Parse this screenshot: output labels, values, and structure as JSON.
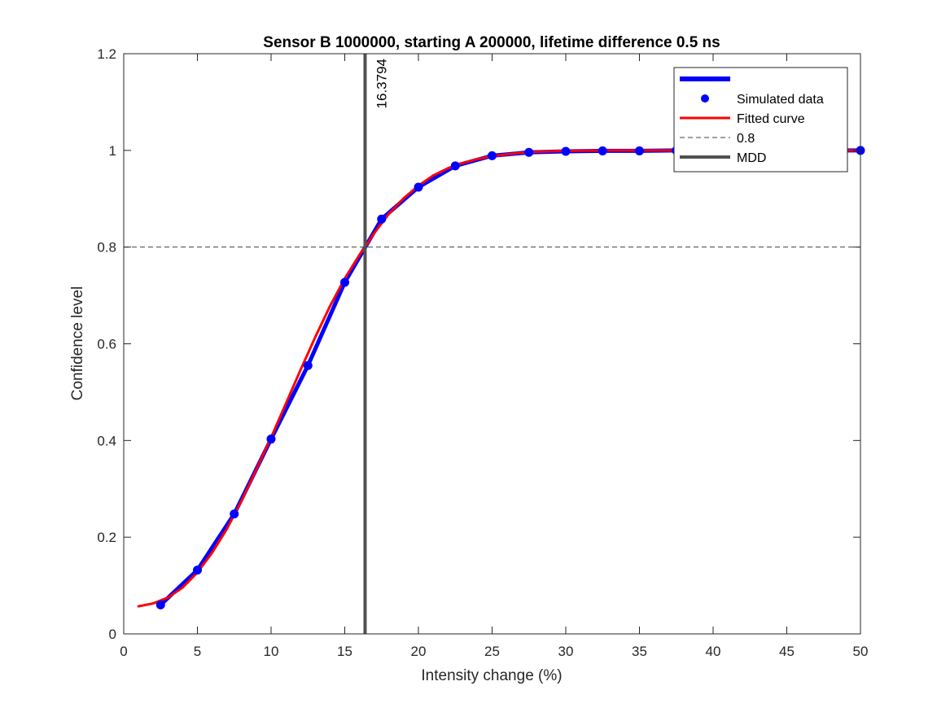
{
  "chart_data": {
    "type": "line",
    "title": "Sensor B 1000000, starting A 200000, lifetime difference 0.5 ns",
    "xlabel": "Intensity change (%)",
    "ylabel": "Confidence level",
    "xlim": [
      0,
      50
    ],
    "ylim": [
      0,
      1.2
    ],
    "x_ticks": [
      0,
      5,
      10,
      15,
      20,
      25,
      30,
      35,
      40,
      45,
      50
    ],
    "y_ticks": [
      0,
      0.2,
      0.4,
      0.6,
      0.8,
      1,
      1.2
    ],
    "x_tick_labels": [
      "0",
      "5",
      "10",
      "15",
      "20",
      "25",
      "30",
      "35",
      "40",
      "45",
      "50"
    ],
    "y_tick_labels": [
      "0",
      "0.2",
      "0.4",
      "0.6",
      "0.8",
      "1",
      "1.2"
    ],
    "grid": false,
    "legend_position": "top-right",
    "series": [
      {
        "name": "",
        "kind": "line",
        "color": "#0000ff",
        "x": [
          2.5,
          5,
          7.5,
          10,
          12.5,
          15,
          17.5,
          20,
          22.5,
          25,
          27.5,
          30,
          32.5,
          35,
          37.5,
          40,
          42.5,
          45,
          47.5,
          50
        ],
        "y": [
          0.06,
          0.132,
          0.248,
          0.403,
          0.555,
          0.727,
          0.858,
          0.924,
          0.968,
          0.989,
          0.996,
          0.998,
          0.999,
          0.999,
          1.0,
          1.0,
          1.0,
          1.0,
          1.0,
          1.0
        ]
      },
      {
        "name": "Simulated data",
        "kind": "scatter",
        "color": "#0000ff",
        "x": [
          2.5,
          5,
          7.5,
          10,
          12.5,
          15,
          17.5,
          20,
          22.5,
          25,
          27.5,
          30,
          32.5,
          35,
          37.5,
          40,
          42.5,
          45,
          47.5,
          50
        ],
        "y": [
          0.06,
          0.132,
          0.248,
          0.403,
          0.555,
          0.727,
          0.858,
          0.924,
          0.968,
          0.989,
          0.996,
          0.998,
          0.999,
          0.999,
          1.0,
          1.0,
          1.0,
          1.0,
          1.0,
          1.0
        ]
      },
      {
        "name": "Fitted curve",
        "kind": "line",
        "color": "#ff0000",
        "x": [
          1,
          2,
          3,
          4,
          5,
          6,
          7,
          8,
          9,
          10,
          11,
          12,
          13,
          14,
          15,
          16,
          16.38,
          17,
          18,
          19,
          20,
          21,
          22,
          23,
          24,
          25,
          26,
          27,
          28,
          30,
          33,
          36,
          40,
          45,
          50
        ],
        "y": [
          0.057,
          0.063,
          0.075,
          0.096,
          0.127,
          0.168,
          0.217,
          0.276,
          0.34,
          0.406,
          0.476,
          0.546,
          0.614,
          0.678,
          0.735,
          0.784,
          0.8,
          0.829,
          0.869,
          0.901,
          0.927,
          0.948,
          0.963,
          0.974,
          0.982,
          0.988,
          0.992,
          0.995,
          0.997,
          0.999,
          1.0,
          1.0,
          1.0,
          1.0,
          1.0
        ]
      },
      {
        "name": "0.8",
        "kind": "hline",
        "color": "#404040",
        "y": 0.8
      },
      {
        "name": "MDD",
        "kind": "vline",
        "color": "#505050",
        "x": 16.3794
      }
    ],
    "annotations": [
      {
        "text": "16.3794",
        "x": 16.3794,
        "y": 1.2
      }
    ]
  }
}
